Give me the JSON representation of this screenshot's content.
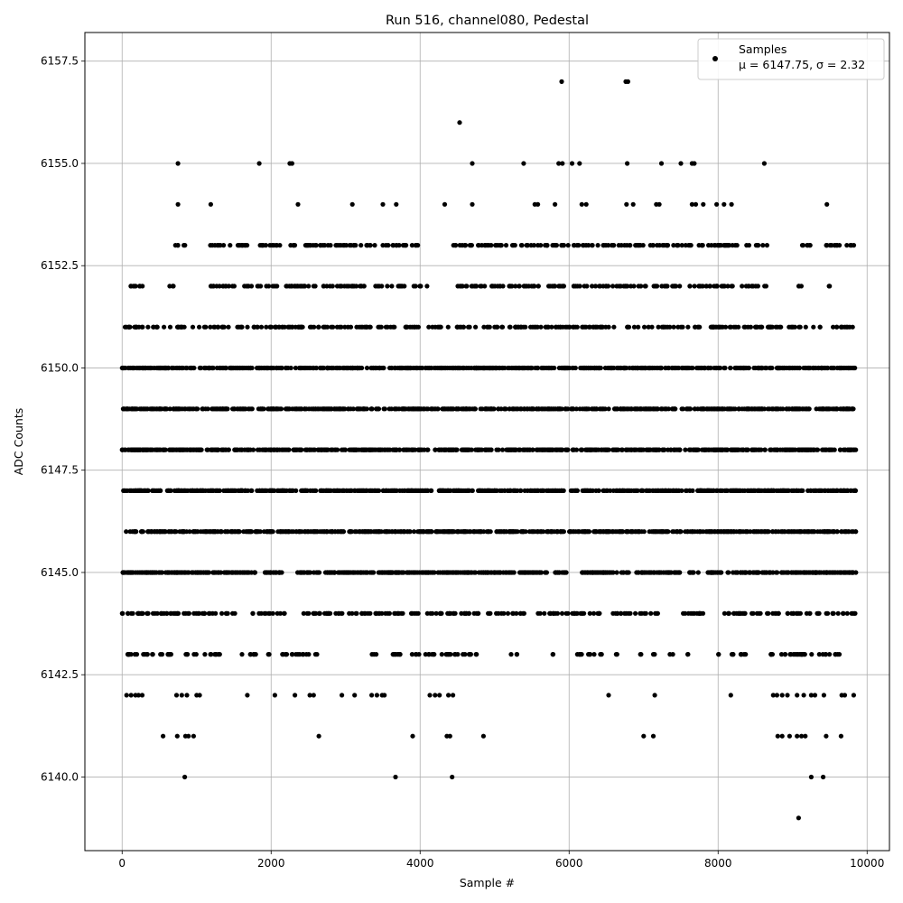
{
  "chart_data": {
    "type": "scatter",
    "title": "Run 516, channel080, Pedestal",
    "xlabel": "Sample #",
    "ylabel": "ADC Counts",
    "xlim": [
      -500,
      10300
    ],
    "ylim": [
      6138.2,
      6158.2
    ],
    "xticks": [
      0,
      2000,
      4000,
      6000,
      8000,
      10000
    ],
    "xtick_labels": [
      "0",
      "2000",
      "4000",
      "6000",
      "8000",
      "10000"
    ],
    "yticks": [
      6140.0,
      6142.5,
      6145.0,
      6147.5,
      6150.0,
      6152.5,
      6155.0,
      6157.5
    ],
    "ytick_labels": [
      "6140.0",
      "6142.5",
      "6145.0",
      "6147.5",
      "6150.0",
      "6152.5",
      "6155.0",
      "6157.5"
    ],
    "grid": true,
    "legend": {
      "position": "top-right",
      "label": "Samples",
      "stats": "μ = 6147.75, σ = 2.32"
    },
    "marker_color": "#000000",
    "series": [
      {
        "name": "Samples",
        "points": [
          [
            5900,
            6157
          ],
          [
            6760,
            6157
          ],
          [
            6790,
            6157
          ],
          [
            4530,
            6156
          ],
          [
            750,
            6155
          ],
          [
            1840,
            6155
          ],
          [
            2250,
            6155
          ],
          [
            2280,
            6155
          ],
          [
            4700,
            6155
          ],
          [
            5390,
            6155
          ],
          [
            5860,
            6155
          ],
          [
            5910,
            6155
          ],
          [
            6040,
            6155
          ],
          [
            6140,
            6155
          ],
          [
            6780,
            6155
          ],
          [
            7240,
            6155
          ],
          [
            7500,
            6155
          ],
          [
            7650,
            6155
          ],
          [
            7680,
            6155
          ],
          [
            8620,
            6155
          ],
          [
            750,
            6154
          ],
          [
            1190,
            6154
          ],
          [
            2360,
            6154
          ],
          [
            3090,
            6154
          ],
          [
            3500,
            6154
          ],
          [
            3680,
            6154
          ],
          [
            4330,
            6154
          ],
          [
            4700,
            6154
          ],
          [
            5540,
            6154
          ],
          [
            5580,
            6154
          ],
          [
            5810,
            6154
          ],
          [
            6170,
            6154
          ],
          [
            6230,
            6154
          ],
          [
            6770,
            6154
          ],
          [
            6860,
            6154
          ],
          [
            7170,
            6154
          ],
          [
            7210,
            6154
          ],
          [
            7650,
            6154
          ],
          [
            7700,
            6154
          ],
          [
            7800,
            6154
          ],
          [
            7980,
            6154
          ],
          [
            8080,
            6154
          ],
          [
            8180,
            6154
          ],
          [
            9460,
            6154
          ],
          [
            60,
            6142
          ],
          [
            120,
            6142
          ],
          [
            180,
            6142
          ],
          [
            220,
            6142
          ],
          [
            270,
            6142
          ],
          [
            730,
            6142
          ],
          [
            800,
            6142
          ],
          [
            870,
            6142
          ],
          [
            1000,
            6142
          ],
          [
            1040,
            6142
          ],
          [
            1680,
            6142
          ],
          [
            2050,
            6142
          ],
          [
            2320,
            6142
          ],
          [
            2520,
            6142
          ],
          [
            2570,
            6142
          ],
          [
            2950,
            6142
          ],
          [
            3120,
            6142
          ],
          [
            3350,
            6142
          ],
          [
            3420,
            6142
          ],
          [
            3490,
            6142
          ],
          [
            3520,
            6142
          ],
          [
            4130,
            6142
          ],
          [
            4200,
            6142
          ],
          [
            4260,
            6142
          ],
          [
            4380,
            6142
          ],
          [
            4440,
            6142
          ],
          [
            6530,
            6142
          ],
          [
            7150,
            6142
          ],
          [
            8170,
            6142
          ],
          [
            8740,
            6142
          ],
          [
            8790,
            6142
          ],
          [
            8860,
            6142
          ],
          [
            8930,
            6142
          ],
          [
            9060,
            6142
          ],
          [
            9150,
            6142
          ],
          [
            9250,
            6142
          ],
          [
            9300,
            6142
          ],
          [
            9420,
            6142
          ],
          [
            9660,
            6142
          ],
          [
            9700,
            6142
          ],
          [
            9820,
            6142
          ],
          [
            550,
            6141
          ],
          [
            740,
            6141
          ],
          [
            850,
            6141
          ],
          [
            890,
            6141
          ],
          [
            960,
            6141
          ],
          [
            2640,
            6141
          ],
          [
            3900,
            6141
          ],
          [
            4360,
            6141
          ],
          [
            4400,
            6141
          ],
          [
            4850,
            6141
          ],
          [
            7000,
            6141
          ],
          [
            7130,
            6141
          ],
          [
            8800,
            6141
          ],
          [
            8860,
            6141
          ],
          [
            8960,
            6141
          ],
          [
            9060,
            6141
          ],
          [
            9120,
            6141
          ],
          [
            9170,
            6141
          ],
          [
            9450,
            6141
          ],
          [
            9650,
            6141
          ],
          [
            840,
            6140
          ],
          [
            3670,
            6140
          ],
          [
            4430,
            6140
          ],
          [
            9250,
            6140
          ],
          [
            9410,
            6140
          ],
          [
            9080,
            6139
          ]
        ],
        "bands": [
          {
            "y": 6153,
            "x_ranges": [
              [
                700,
                850
              ],
              [
                1150,
                1700
              ],
              [
                1800,
                2700
              ],
              [
                2700,
                3400
              ],
              [
                3500,
                4000
              ],
              [
                4400,
                5000
              ],
              [
                5000,
                6300
              ],
              [
                6300,
                7400
              ],
              [
                7400,
                8000
              ],
              [
                8000,
                8700
              ],
              [
                9100,
                9300
              ],
              [
                9400,
                9850
              ]
            ]
          },
          {
            "y": 6152,
            "x_ranges": [
              [
                80,
                330
              ],
              [
                620,
                760
              ],
              [
                1150,
                1550
              ],
              [
                1600,
                2400
              ],
              [
                2400,
                3400
              ],
              [
                3400,
                3800
              ],
              [
                3900,
                4100
              ],
              [
                4400,
                6900
              ],
              [
                6900,
                7500
              ],
              [
                7600,
                8700
              ],
              [
                9050,
                9150
              ],
              [
                9470,
                9500
              ]
            ]
          },
          {
            "y": 6151,
            "x_ranges": [
              [
                0,
                3800
              ],
              [
                3800,
                4400
              ],
              [
                4450,
                9300
              ],
              [
                9350,
                9420
              ],
              [
                9500,
                9850
              ]
            ]
          },
          {
            "y": 6150,
            "x_ranges": [
              [
                0,
                9850
              ]
            ]
          },
          {
            "y": 6149,
            "x_ranges": [
              [
                0,
                9850
              ]
            ]
          },
          {
            "y": 6148,
            "x_ranges": [
              [
                0,
                9850
              ]
            ]
          },
          {
            "y": 6147,
            "x_ranges": [
              [
                0,
                9850
              ]
            ]
          },
          {
            "y": 6146,
            "x_ranges": [
              [
                0,
                9850
              ]
            ]
          },
          {
            "y": 6145,
            "x_ranges": [
              [
                0,
                1800
              ],
              [
                1900,
                2200
              ],
              [
                2350,
                5700
              ],
              [
                5800,
                6000
              ],
              [
                6150,
                6800
              ],
              [
                6900,
                7500
              ],
              [
                7600,
                9850
              ]
            ]
          },
          {
            "y": 6144,
            "x_ranges": [
              [
                0,
                2200
              ],
              [
                2350,
                4300
              ],
              [
                4350,
                5400
              ],
              [
                5550,
                6500
              ],
              [
                6550,
                6900
              ],
              [
                6950,
                7200
              ],
              [
                7500,
                7900
              ],
              [
                8050,
                9850
              ]
            ]
          },
          {
            "y": 6143,
            "x_ranges": [
              [
                0,
                700
              ],
              [
                850,
                1000
              ],
              [
                1100,
                1350
              ],
              [
                1600,
                1800
              ],
              [
                1950,
                2000
              ],
              [
                2150,
                2650
              ],
              [
                3350,
                3450
              ],
              [
                3600,
                4700
              ],
              [
                4750,
                4800
              ],
              [
                5200,
                5300
              ],
              [
                5750,
                5800
              ],
              [
                6100,
                6450
              ],
              [
                6620,
                6650
              ],
              [
                6950,
                7000
              ],
              [
                7100,
                7150
              ],
              [
                7350,
                7400
              ],
              [
                7550,
                7600
              ],
              [
                8000,
                8050
              ],
              [
                8150,
                8400
              ],
              [
                8700,
                9650
              ]
            ]
          }
        ]
      }
    ]
  }
}
